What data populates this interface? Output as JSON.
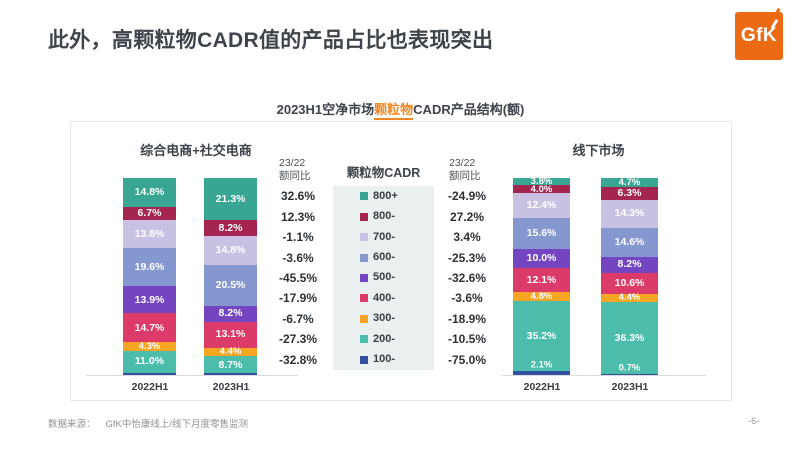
{
  "page": {
    "title": "此外，高颗粒物CADR值的产品占比也表现突出",
    "logo": "GfK",
    "footer": {
      "source_label": "数据来源：",
      "source_text": "GfK中怡康线上/线下月度零售监测",
      "page_number": "-6-"
    }
  },
  "chart_header": {
    "prefix": "2023H1空净市场",
    "highlight": "颗粒物",
    "suffix": "CADR产品结构(额)"
  },
  "colors": {
    "brand_orange": "#ec6a13",
    "highlight_orange": "#f08622",
    "title_text": "#3e444b",
    "legend_panel_bg": "#eaf0ef"
  },
  "chart_data": {
    "type": "bar",
    "variant": "100%-stacked-column",
    "grid": false,
    "ylim": [
      0,
      100
    ],
    "legend_title": "颗粒物CADR",
    "legend_position": "center-between-charts",
    "yoy_header": {
      "line1": "23/22",
      "line2": "额同比"
    },
    "stack_categories": [
      "800+",
      "800-",
      "700-",
      "600-",
      "500-",
      "400-",
      "300-",
      "200-",
      "100-"
    ],
    "category_colors": [
      "#38a692",
      "#a32550",
      "#c9c1e1",
      "#8497cf",
      "#7445c1",
      "#dc3a68",
      "#f6a623",
      "#4cbcab",
      "#31519f"
    ],
    "charts": [
      {
        "title": "综合电商+社交电商",
        "x": [
          "2022H1",
          "2023H1"
        ],
        "bars": [
          {
            "label": "2022H1",
            "values": [
              14.8,
              6.7,
              13.8,
              19.6,
              13.9,
              14.7,
              4.3,
              11.0,
              1.2
            ],
            "labels": [
              "14.8%",
              "6.7%",
              "13.8%",
              "19.6%",
              "13.9%",
              "14.7%",
              "4.3%",
              "11.0%",
              ""
            ]
          },
          {
            "label": "2023H1",
            "values": [
              21.3,
              8.2,
              14.8,
              20.5,
              8.2,
              13.1,
              4.4,
              8.7,
              0.8
            ],
            "labels": [
              "21.3%",
              "8.2%",
              "14.8%",
              "20.5%",
              "8.2%",
              "13.1%",
              "4.4%",
              "8.7%",
              ""
            ]
          }
        ],
        "yoy": [
          "32.6%",
          "12.3%",
          "-1.1%",
          "-3.6%",
          "-45.5%",
          "-17.9%",
          "-6.7%",
          "-27.3%",
          "-32.8%"
        ]
      },
      {
        "title": "线下市场",
        "x": [
          "2022H1",
          "2023H1"
        ],
        "bars": [
          {
            "label": "2022H1",
            "values": [
              3.8,
              4.0,
              12.4,
              15.6,
              10.0,
              12.1,
              4.8,
              35.2,
              2.1
            ],
            "labels": [
              "3.8%",
              "4.0%",
              "12.4%",
              "15.6%",
              "10.0%",
              "12.1%",
              "4.8%",
              "35.2%",
              "2.1%"
            ]
          },
          {
            "label": "2023H1",
            "values": [
              4.7,
              6.3,
              14.3,
              14.6,
              8.2,
              10.6,
              4.4,
              36.3,
              0.7
            ],
            "labels": [
              "4.7%",
              "6.3%",
              "14.3%",
              "14.6%",
              "8.2%",
              "10.6%",
              "4.4%",
              "36.3%",
              "0.7%"
            ]
          }
        ],
        "yoy": [
          "-24.9%",
          "27.2%",
          "3.4%",
          "-25.3%",
          "-32.6%",
          "-3.6%",
          "-18.9%",
          "-10.5%",
          "-75.0%"
        ]
      }
    ]
  }
}
